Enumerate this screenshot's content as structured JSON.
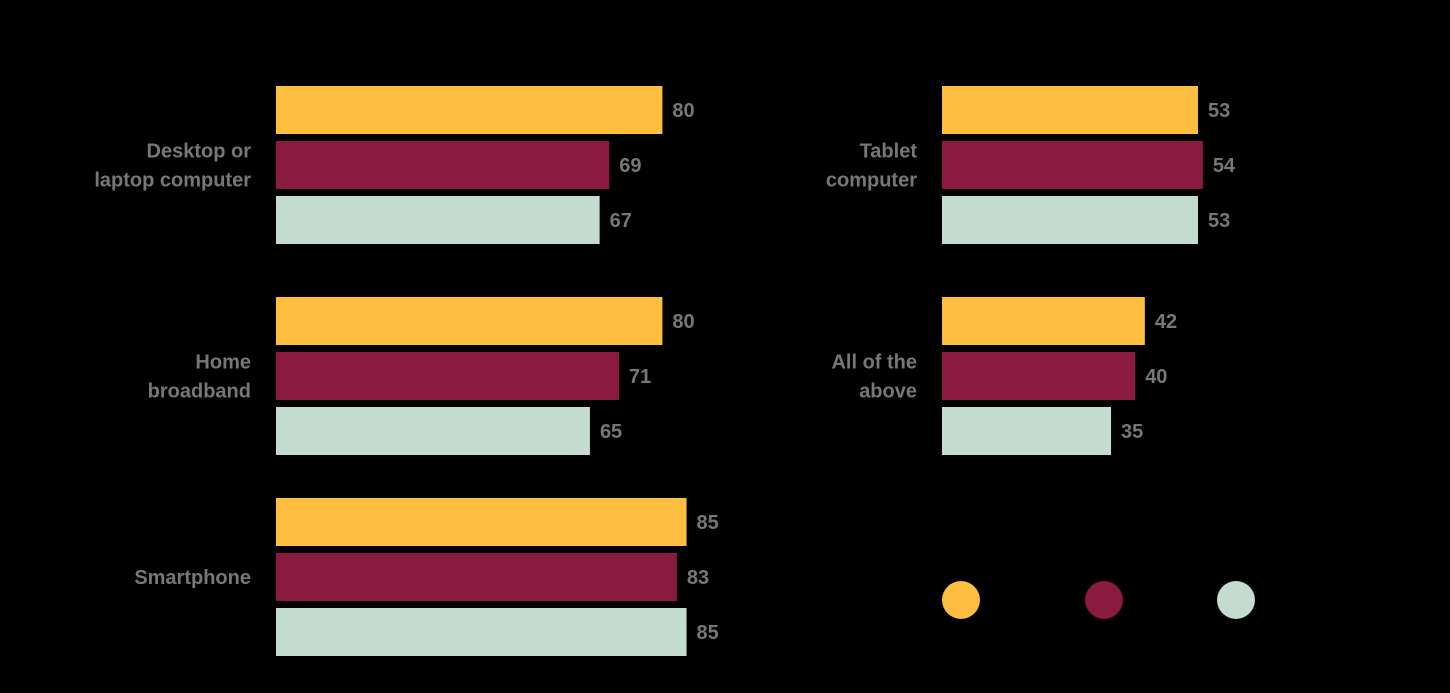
{
  "colors": {
    "background": "#000000",
    "label_text": "#77777a",
    "series_1": "#fdbd3f",
    "series_2": "#8a1a3f",
    "series_3": "#c4dbcf"
  },
  "chart_data": {
    "type": "bar",
    "orientation": "horizontal",
    "title": "",
    "xlabel": "",
    "ylabel": "",
    "xlim": [
      0,
      100
    ],
    "grid": false,
    "legend_position": "bottom-right",
    "legend_labels_visible": false,
    "series": [
      {
        "color": "#fdbd3f"
      },
      {
        "color": "#8a1a3f"
      },
      {
        "color": "#c4dbcf"
      }
    ],
    "groups": [
      {
        "label_lines": [
          "Desktop or",
          "laptop computer"
        ],
        "values": [
          80,
          69,
          67
        ]
      },
      {
        "label_lines": [
          "Home",
          "broadband"
        ],
        "values": [
          80,
          71,
          65
        ]
      },
      {
        "label_lines": [
          "Smartphone"
        ],
        "values": [
          85,
          83,
          85
        ]
      },
      {
        "label_lines": [
          "Tablet",
          "computer"
        ],
        "values": [
          53,
          54,
          53
        ]
      },
      {
        "label_lines": [
          "All of the",
          "above"
        ],
        "values": [
          42,
          40,
          35
        ]
      }
    ]
  }
}
